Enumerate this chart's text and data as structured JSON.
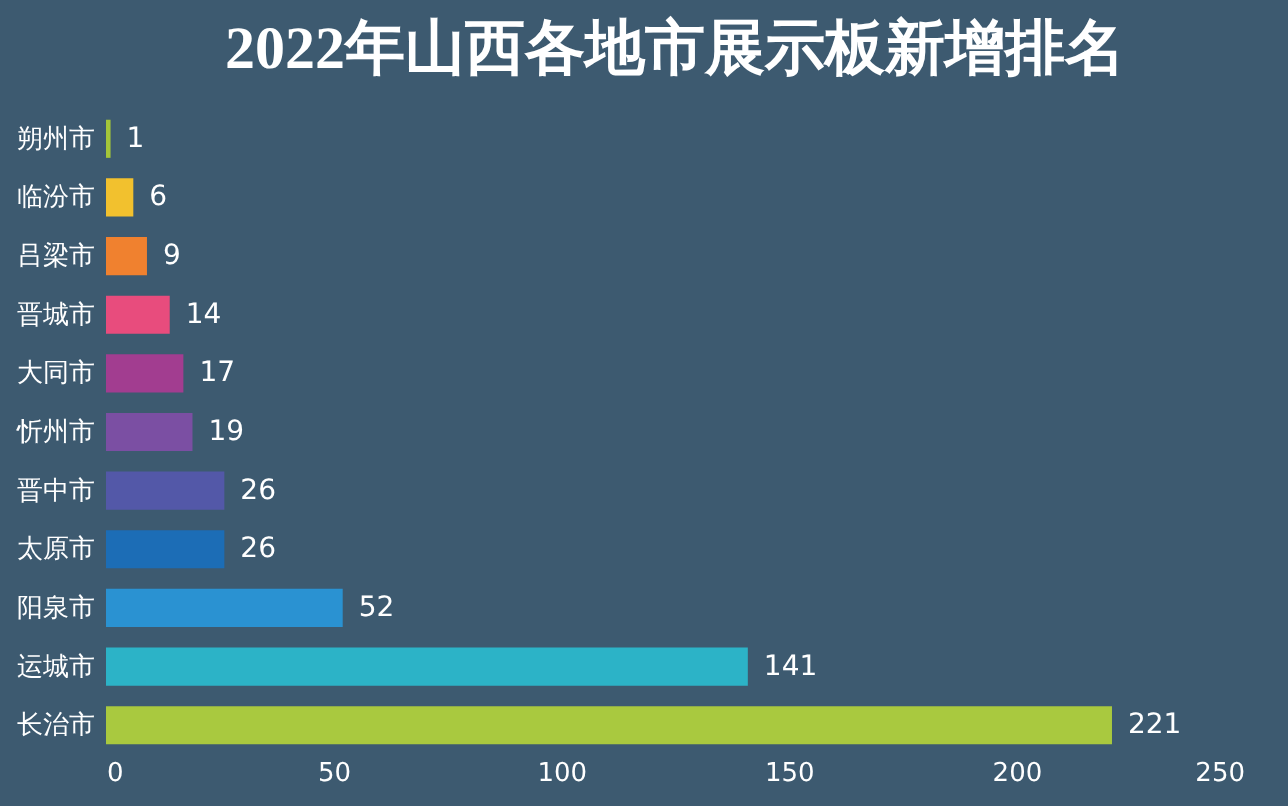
{
  "chart_data": {
    "type": "bar",
    "title": "2022年山西各地市展示板新增排名",
    "orientation": "horizontal",
    "categories": [
      "朔州市",
      "临汾市",
      "吕梁市",
      "晋城市",
      "大同市",
      "忻州市",
      "晋中市",
      "太原市",
      "阳泉市",
      "运城市",
      "长治市"
    ],
    "values": [
      1,
      6,
      9,
      14,
      17,
      19,
      26,
      26,
      52,
      141,
      221
    ],
    "colors": [
      "#a4c639",
      "#f2c12e",
      "#f0812f",
      "#e84c7d",
      "#a23d90",
      "#7b4fa3",
      "#5358a8",
      "#1c6db6",
      "#2a92d2",
      "#2cb3c7",
      "#a9c93f"
    ],
    "xlim": [
      0,
      250
    ],
    "xticks": [
      0,
      50,
      100,
      150,
      200,
      250
    ],
    "data_labels": true,
    "grid": false,
    "legend": false
  }
}
